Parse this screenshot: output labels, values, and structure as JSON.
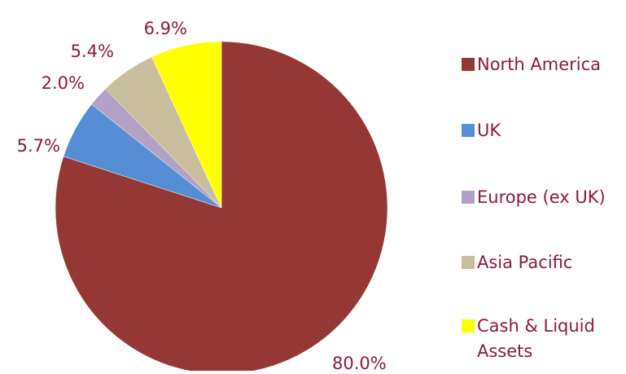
{
  "chart_data": {
    "type": "pie",
    "title": "",
    "start_angle_deg": 90,
    "direction": "clockwise",
    "label_color": "#8B1A3F",
    "legend_position": "right",
    "slices": [
      {
        "label": "North America",
        "value": 80.0,
        "value_label": "80.0%",
        "color": "#953735"
      },
      {
        "label": "UK",
        "value": 5.7,
        "value_label": "5.7%",
        "color": "#558ED5"
      },
      {
        "label": "Europe (ex UK)",
        "value": 2.0,
        "value_label": "2.0%",
        "color": "#B3A2C7"
      },
      {
        "label": "Asia Pacific",
        "value": 5.4,
        "value_label": "5.4%",
        "color": "#C9BE9B"
      },
      {
        "label": "Cash & Liquid Assets",
        "value": 6.9,
        "value_label": "6.9%",
        "color": "#FFFF00"
      }
    ]
  }
}
